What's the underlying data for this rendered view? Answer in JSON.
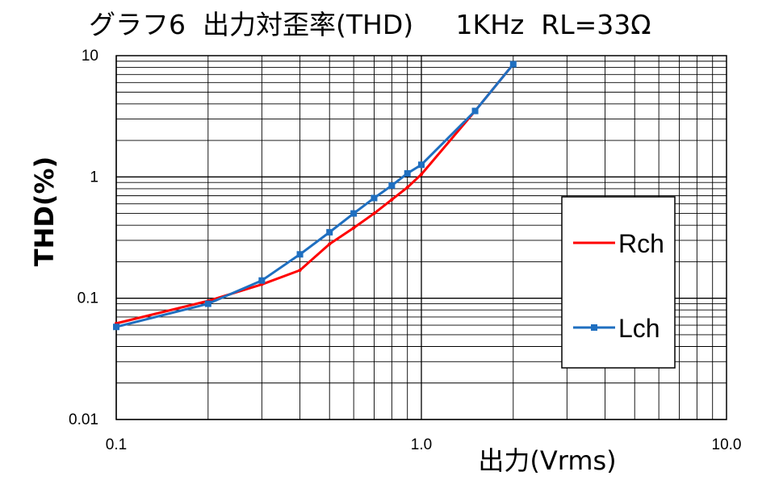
{
  "title": "グラフ6  出力対歪率(THD)     1KHz  RL=33Ω",
  "chart_data": {
    "type": "line",
    "title": "グラフ6  出力対歪率(THD)     1KHz  RL=33Ω",
    "xlabel": "出力(Vrms)",
    "ylabel": "THD(%)",
    "x_scale": "log",
    "y_scale": "log",
    "xlim": [
      0.1,
      10.0
    ],
    "ylim": [
      0.01,
      10
    ],
    "x_ticks": [
      "0.1",
      "1.0",
      "10.0"
    ],
    "y_ticks": [
      "0.01",
      "0.1",
      "1",
      "10"
    ],
    "grid": true,
    "legend_position": "right",
    "series": [
      {
        "name": "Rch",
        "color": "#ff0000",
        "x": [
          0.1,
          0.2,
          0.3,
          0.4,
          0.5,
          0.6,
          0.7,
          0.8,
          0.9,
          1.0,
          1.5,
          2.0
        ],
        "y": [
          0.062,
          0.095,
          0.13,
          0.17,
          0.28,
          0.38,
          0.5,
          0.65,
          0.82,
          1.05,
          3.5,
          8.5
        ]
      },
      {
        "name": "Lch",
        "color": "#1f6fc0",
        "x": [
          0.1,
          0.2,
          0.3,
          0.4,
          0.5,
          0.6,
          0.7,
          0.8,
          0.9,
          1.0,
          1.5,
          2.0
        ],
        "y": [
          0.058,
          0.09,
          0.14,
          0.23,
          0.35,
          0.5,
          0.67,
          0.85,
          1.07,
          1.26,
          3.5,
          8.5
        ]
      }
    ]
  }
}
